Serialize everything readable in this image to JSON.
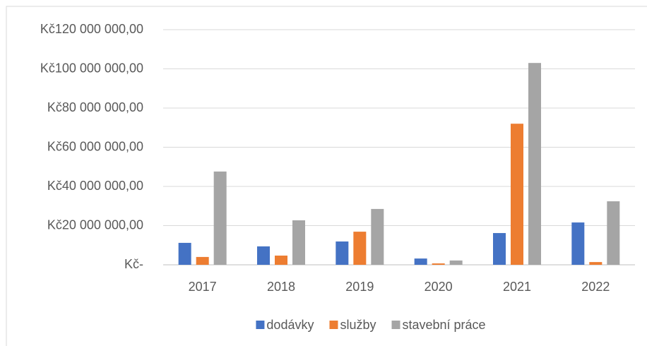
{
  "chart_data": {
    "type": "bar",
    "categories": [
      "2017",
      "2018",
      "2019",
      "2020",
      "2021",
      "2022"
    ],
    "series": [
      {
        "name": "dodávky",
        "color": "#4472c4",
        "values": [
          11200000,
          9400000,
          11900000,
          3200000,
          16200000,
          21600000
        ]
      },
      {
        "name": "služby",
        "color": "#ed7d31",
        "values": [
          4000000,
          4700000,
          16900000,
          700000,
          72000000,
          1400000
        ]
      },
      {
        "name": "stavební práce",
        "color": "#a5a5a5",
        "values": [
          47600000,
          22700000,
          28500000,
          2200000,
          103000000,
          32400000
        ]
      }
    ],
    "ylim": [
      0,
      120000000
    ],
    "yticks": [
      {
        "value": 0,
        "label": "Kč-"
      },
      {
        "value": 20000000,
        "label": "Kč20 000 000,00"
      },
      {
        "value": 40000000,
        "label": "Kč40 000 000,00"
      },
      {
        "value": 60000000,
        "label": "Kč60 000 000,00"
      },
      {
        "value": 80000000,
        "label": "Kč80 000 000,00"
      },
      {
        "value": 100000000,
        "label": "Kč100 000 000,00"
      },
      {
        "value": 120000000,
        "label": "Kč120 000 000,00"
      }
    ],
    "grid": true,
    "legend": "bottom"
  }
}
